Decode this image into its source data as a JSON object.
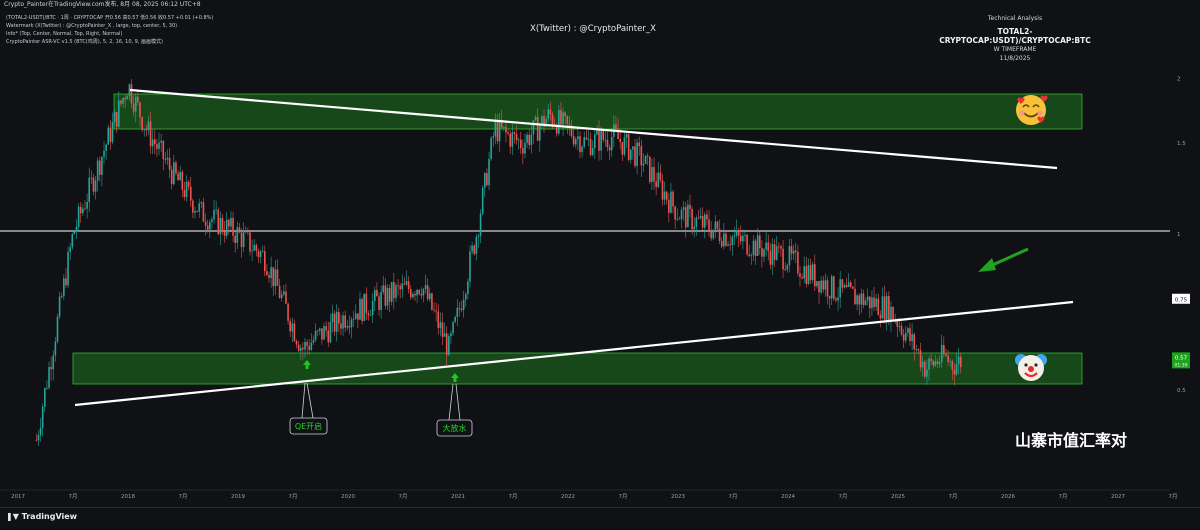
{
  "header": {
    "source_line": "Crypto_Painter在TradingView.com发布, 8月 08, 2025 06:12 UTC+8"
  },
  "legend_lines": [
    "(TOTAL2-USDT)/BTC · 1周 · CRYPTOCAP  开0.56 高0.57 低0.56 收0.57 +0.01 (+0.8%)",
    "Watermark (X(Twitter) : @CryptoPainter_X , large, top, center, 5, 30)",
    "Info* (Top, Center, Normal, Top, Right, Normal)",
    "CryptoPainter ASR-VC v1.5 (BTC(鸡周), 5, 2, 16, 10, 9, 画画模式)"
  ],
  "watermark": "X(Twitter) : @CryptoPainter_X",
  "info_box": {
    "line1": "Technical Analysis",
    "line2": "TOTAL2-CRYPTOCAP:USDT)/CRYPTOCAP:BTC",
    "line3": "W TIMEFRAME",
    "line4": "11/8/2025"
  },
  "annotations": {
    "qe": "QE开启",
    "dafangshui": "大放水",
    "caption": "山寨市值汇率对"
  },
  "brand": "TradingView",
  "emojis": {
    "top": "smiling-face-with-hearts-icon",
    "bottom": "clown-face-icon"
  },
  "chart_data": {
    "type": "candlestick",
    "y_scale": "log",
    "y_ticks": [
      "2",
      "1.5",
      "1",
      "0.75",
      "0.5"
    ],
    "price_tags": {
      "level": "0.75",
      "last": "0.57",
      "last_sub": "01:39"
    },
    "x_ticks": [
      "2017",
      "7月",
      "2018",
      "7月",
      "2019",
      "7月",
      "2020",
      "7月",
      "2021",
      "7月",
      "2022",
      "7月",
      "2023",
      "7月",
      "2024",
      "7月",
      "2025",
      "7月",
      "2026",
      "7月",
      "2027",
      "7月"
    ],
    "close_series": {
      "x": [
        "2017-03",
        "2017-07",
        "2018-01",
        "2018-03",
        "2018-06",
        "2018-09",
        "2019-01",
        "2019-04",
        "2019-08",
        "2019-09",
        "2020-01",
        "2020-06",
        "2020-09",
        "2020-12",
        "2021-01",
        "2021-03",
        "2021-05",
        "2021-08",
        "2021-11",
        "2022-03",
        "2022-06",
        "2022-09",
        "2023-01",
        "2023-06",
        "2024-01",
        "2024-06",
        "2024-12",
        "2025-03",
        "2025-04",
        "2025-06",
        "2025-07",
        "2025-08"
      ],
      "y": [
        0.4,
        1.0,
        1.95,
        1.6,
        1.3,
        1.1,
        1.0,
        0.9,
        0.6,
        0.62,
        0.7,
        0.77,
        0.8,
        0.6,
        0.7,
        1.0,
        1.6,
        1.5,
        1.7,
        1.5,
        1.55,
        1.4,
        1.1,
        1.0,
        0.9,
        0.78,
        0.72,
        0.6,
        0.55,
        0.58,
        0.56,
        0.57
      ]
    },
    "resistance_zone": {
      "low": 1.55,
      "high": 1.85
    },
    "support_zone": {
      "low": 0.44,
      "high": 0.54
    },
    "horizontal_level": 0.75
  }
}
